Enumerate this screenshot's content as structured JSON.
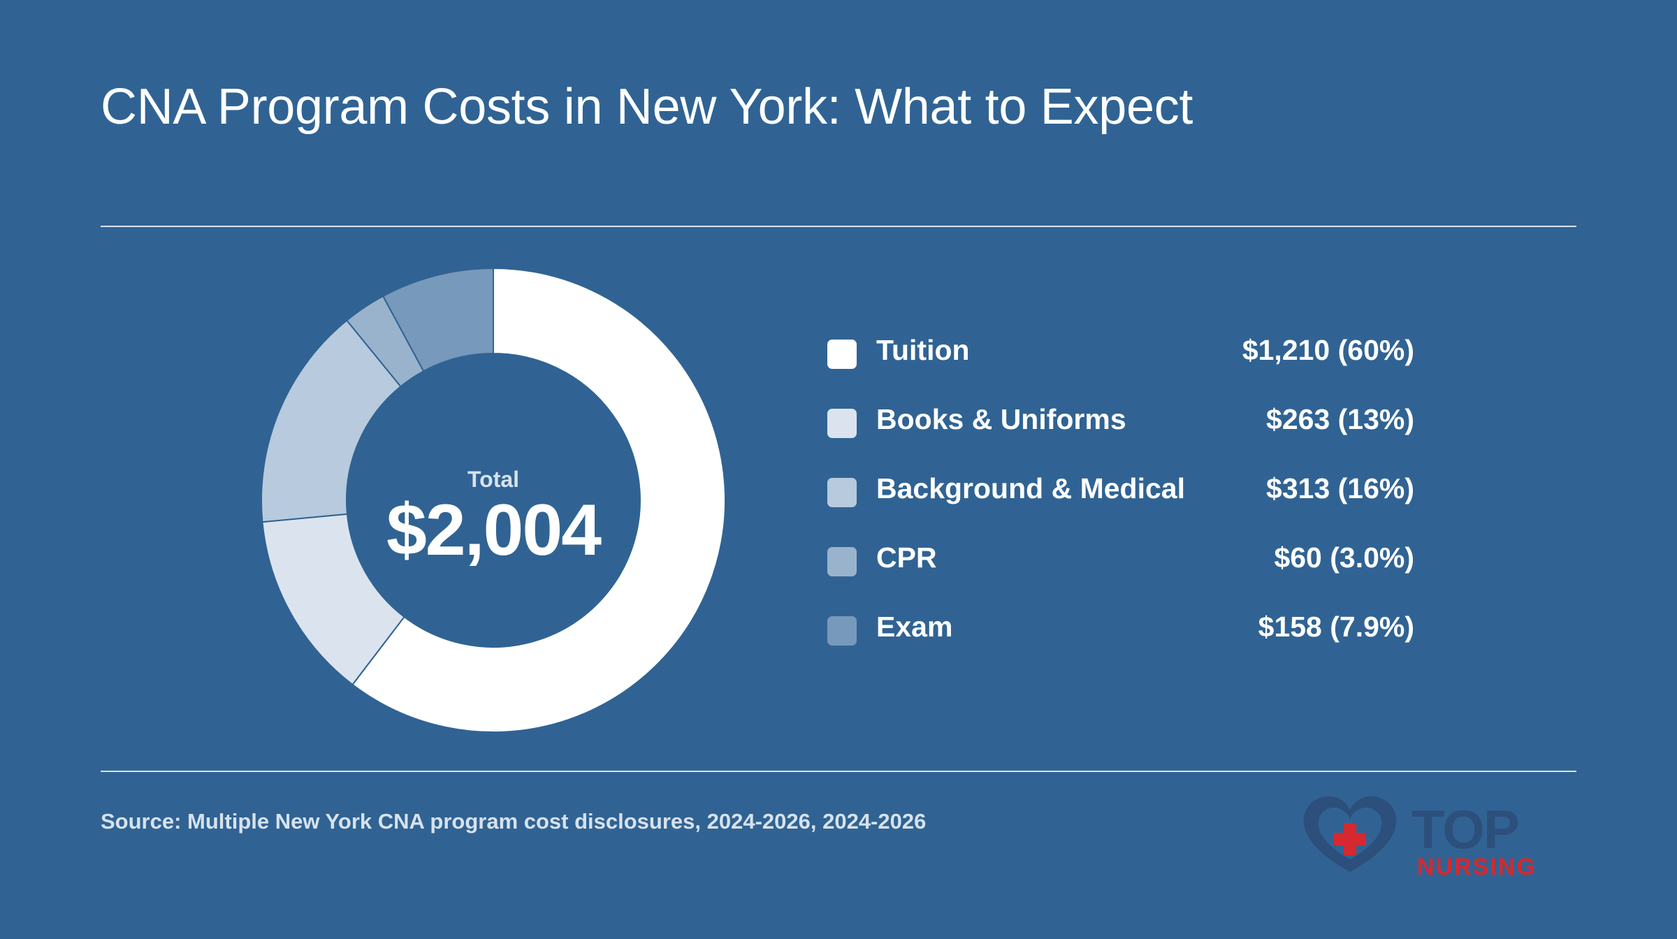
{
  "title": "CNA Program Costs in New York: What to Expect",
  "center": {
    "label": "Total",
    "value": "$2,004"
  },
  "legend": [
    {
      "label": "Tuition",
      "value_text": "$1,210 (60%)",
      "color": "#ffffff"
    },
    {
      "label": "Books & Uniforms",
      "value_text": "$263 (13%)",
      "color": "#dbe4ee"
    },
    {
      "label": "Background & Medical",
      "value_text": "$313 (16%)",
      "color": "#b8cadd"
    },
    {
      "label": "CPR",
      "value_text": "$60 (3.0%)",
      "color": "#9ab3cc"
    },
    {
      "label": "Exam",
      "value_text": "$158 (7.9%)",
      "color": "#7799bb"
    }
  ],
  "source": "Source: Multiple New York CNA program cost disclosures, 2024-2026, 2024-2026",
  "logo": {
    "top_text": "TOP",
    "bottom_text": "NURSING",
    "heart_color": "#2c4f7c",
    "cross_color": "#d6282f"
  },
  "colors": {
    "background": "#306393",
    "divider": "#d8e2ec"
  },
  "chart_data": {
    "type": "pie",
    "style": "donut",
    "title": "CNA Program Costs in New York: What to Expect",
    "total": 2004,
    "categories": [
      "Tuition",
      "Books & Uniforms",
      "Background & Medical",
      "CPR",
      "Exam"
    ],
    "values": [
      1210,
      263,
      313,
      60,
      158
    ],
    "percent_labels": [
      "60%",
      "13%",
      "16%",
      "3.0%",
      "7.9%"
    ],
    "colors": [
      "#ffffff",
      "#dbe4ee",
      "#b8cadd",
      "#9ab3cc",
      "#7799bb"
    ],
    "legend_position": "right",
    "start_angle": "12 o'clock",
    "direction": "clockwise"
  }
}
